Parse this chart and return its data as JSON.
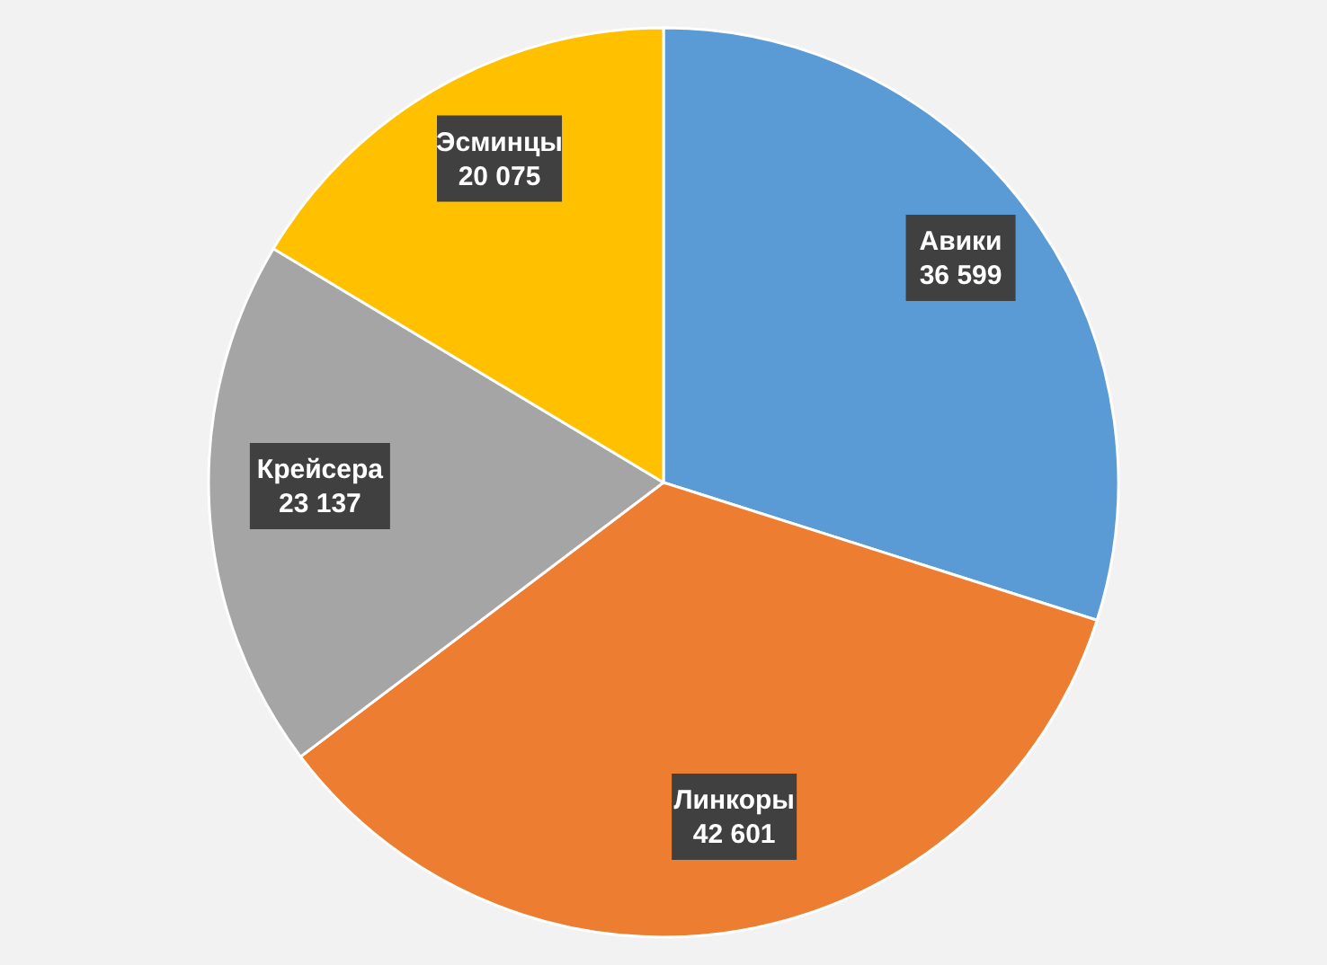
{
  "chart_data": {
    "type": "pie",
    "categories": [
      "Авики",
      "Линкоры",
      "Крейсера",
      "Эсминцы"
    ],
    "values": [
      36599,
      42601,
      23137,
      20075
    ],
    "value_labels": [
      "36 599",
      "42 601",
      "23 137",
      "20 075"
    ],
    "colors": [
      "#5b9bd5",
      "#ed7d31",
      "#a5a5a5",
      "#ffc000"
    ]
  }
}
